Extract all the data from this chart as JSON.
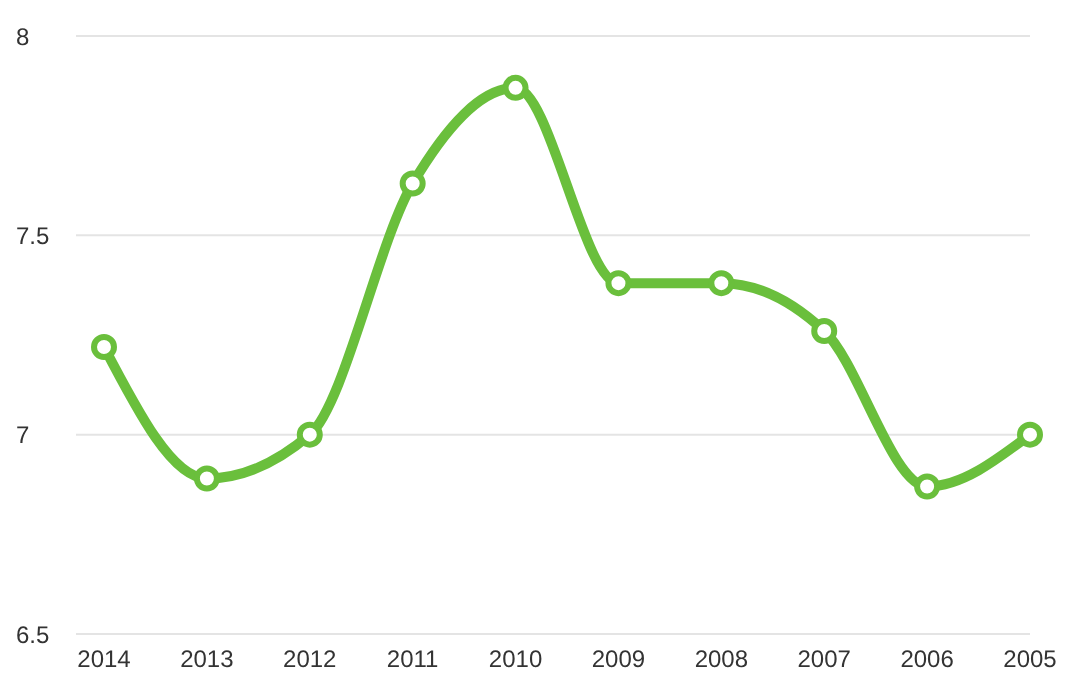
{
  "chart_data": {
    "type": "line",
    "categories": [
      "2014",
      "2013",
      "2012",
      "2011",
      "2010",
      "2009",
      "2008",
      "2007",
      "2006",
      "2005"
    ],
    "series": [
      {
        "color": "#6abf3c",
        "values": [
          7.22,
          6.89,
          7.0,
          7.63,
          7.87,
          7.38,
          7.38,
          7.26,
          6.87,
          7.0
        ]
      }
    ],
    "ylim": [
      6.5,
      8
    ],
    "yticks": [
      6.5,
      7,
      7.5,
      8
    ],
    "grid": "y",
    "marker": "circle",
    "line_style": "solid"
  }
}
